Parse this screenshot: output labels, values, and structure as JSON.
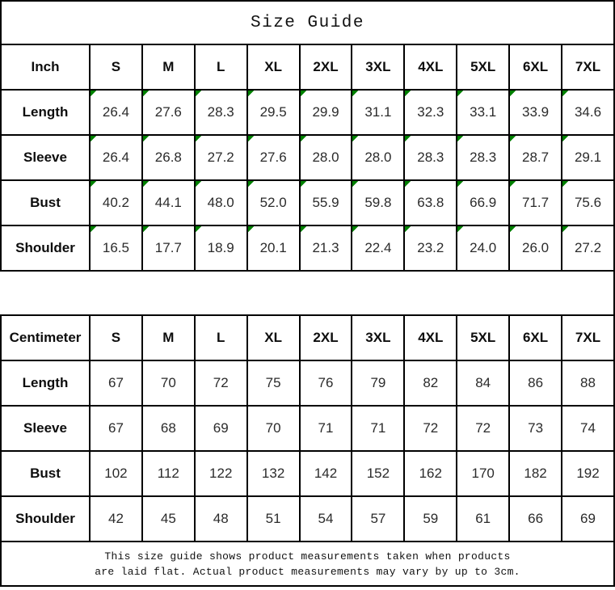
{
  "title": "Size Guide",
  "colors": {
    "grid": "#000000",
    "cell_flag_green": "#008000",
    "background": "#ffffff"
  },
  "tables": [
    {
      "unit": "Inch",
      "sizes": [
        "S",
        "M",
        "L",
        "XL",
        "2XL",
        "3XL",
        "4XL",
        "5XL",
        "6XL",
        "7XL"
      ],
      "cell_flags": true,
      "rows": [
        {
          "label": "Length",
          "values": [
            "26.4",
            "27.6",
            "28.3",
            "29.5",
            "29.9",
            "31.1",
            "32.3",
            "33.1",
            "33.9",
            "34.6"
          ]
        },
        {
          "label": "Sleeve",
          "values": [
            "26.4",
            "26.8",
            "27.2",
            "27.6",
            "28.0",
            "28.0",
            "28.3",
            "28.3",
            "28.7",
            "29.1"
          ]
        },
        {
          "label": "Bust",
          "values": [
            "40.2",
            "44.1",
            "48.0",
            "52.0",
            "55.9",
            "59.8",
            "63.8",
            "66.9",
            "71.7",
            "75.6"
          ]
        },
        {
          "label": "Shoulder",
          "values": [
            "16.5",
            "17.7",
            "18.9",
            "20.1",
            "21.3",
            "22.4",
            "23.2",
            "24.0",
            "26.0",
            "27.2"
          ]
        }
      ]
    },
    {
      "unit": "Centimeter",
      "sizes": [
        "S",
        "M",
        "L",
        "XL",
        "2XL",
        "3XL",
        "4XL",
        "5XL",
        "6XL",
        "7XL"
      ],
      "cell_flags": false,
      "rows": [
        {
          "label": "Length",
          "values": [
            "67",
            "70",
            "72",
            "75",
            "76",
            "79",
            "82",
            "84",
            "86",
            "88"
          ]
        },
        {
          "label": "Sleeve",
          "values": [
            "67",
            "68",
            "69",
            "70",
            "71",
            "71",
            "72",
            "72",
            "73",
            "74"
          ]
        },
        {
          "label": "Bust",
          "values": [
            "102",
            "112",
            "122",
            "132",
            "142",
            "152",
            "162",
            "170",
            "182",
            "192"
          ]
        },
        {
          "label": "Shoulder",
          "values": [
            "42",
            "45",
            "48",
            "51",
            "54",
            "57",
            "59",
            "61",
            "66",
            "69"
          ]
        }
      ]
    }
  ],
  "footer": {
    "line1": "This size guide shows product measurements taken when products",
    "line2": "are laid flat. Actual product measurements may vary by up to 3cm."
  }
}
